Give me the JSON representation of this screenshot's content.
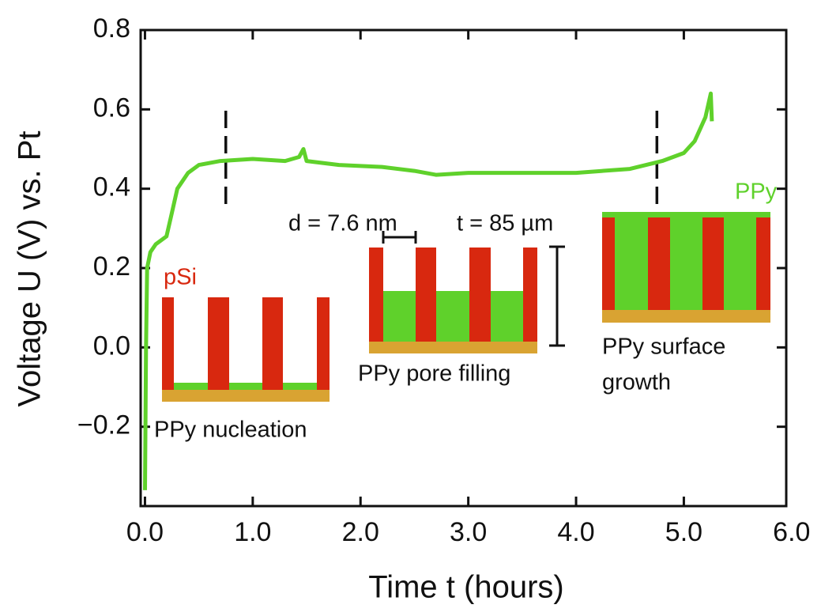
{
  "chart_data": {
    "type": "line",
    "xlabel": "Time t (hours)",
    "ylabel": "Voltage U (V) vs. Pt",
    "xlim": [
      -0.04,
      5.95
    ],
    "ylim": [
      -0.4,
      0.8
    ],
    "xticks": [
      {
        "value": 0,
        "label": "0.0"
      },
      {
        "value": 1,
        "label": "1.0"
      },
      {
        "value": 2,
        "label": "2.0"
      },
      {
        "value": 3,
        "label": "3.0"
      },
      {
        "value": 4,
        "label": "4.0"
      },
      {
        "value": 5,
        "label": "5.0"
      },
      {
        "value": 6,
        "label": "6.0"
      }
    ],
    "yticks": [
      {
        "value": -0.2,
        "label": "−0.2"
      },
      {
        "value": 0,
        "label": "0.0"
      },
      {
        "value": 0.2,
        "label": "0.2"
      },
      {
        "value": 0.4,
        "label": "0.4"
      },
      {
        "value": 0.6,
        "label": "0.6"
      },
      {
        "value": 0.8,
        "label": "0.8"
      }
    ],
    "x": [
      0.0,
      0.01,
      0.02,
      0.05,
      0.1,
      0.15,
      0.2,
      0.25,
      0.3,
      0.4,
      0.5,
      0.7,
      1.0,
      1.3,
      1.43,
      1.47,
      1.5,
      1.8,
      2.2,
      2.5,
      2.7,
      3.0,
      3.5,
      4.0,
      4.5,
      4.8,
      5.0,
      5.1,
      5.2,
      5.25,
      5.26
    ],
    "series": [
      {
        "color": "#5fd12b",
        "values": [
          -0.36,
          0.0,
          0.2,
          0.24,
          0.26,
          0.27,
          0.28,
          0.34,
          0.4,
          0.44,
          0.46,
          0.47,
          0.475,
          0.47,
          0.48,
          0.5,
          0.47,
          0.46,
          0.455,
          0.445,
          0.435,
          0.44,
          0.44,
          0.44,
          0.45,
          0.47,
          0.49,
          0.52,
          0.58,
          0.64,
          0.57
        ]
      }
    ],
    "phase_boundaries": [
      0.75,
      4.75
    ],
    "annotations": [
      "pSi",
      "PPy nucleation",
      "d = 7.6 nm",
      "t = 85 µm",
      "PPy pore filling",
      "PPy",
      "PPy surface",
      "growth"
    ]
  }
}
